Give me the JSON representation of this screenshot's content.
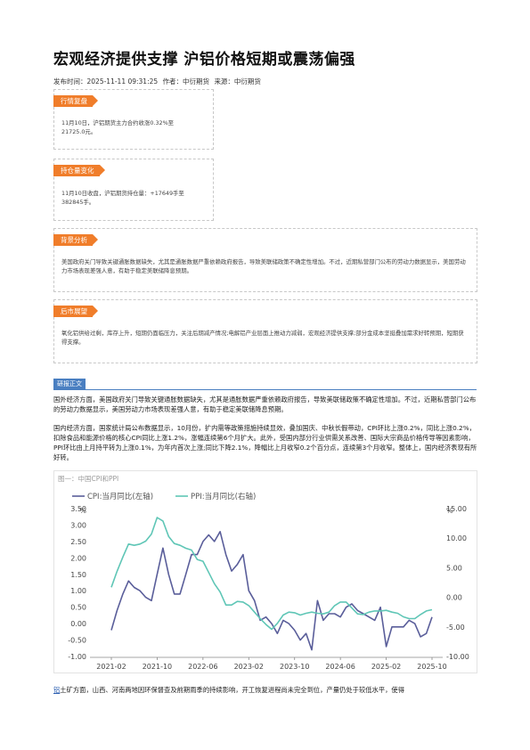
{
  "article": {
    "title": "宏观经济提供支撑 沪铝价格短期或震荡偏强",
    "meta": {
      "publish_time": "发布时间：2025-11-11 09:31:25",
      "author": "作者：中衍期货",
      "source": "来源：中衍期货"
    }
  },
  "boxes": [
    {
      "tag": "行情复盘",
      "text": "11月10日，沪铝期货主力合约收涨0.32%至21725.0元。"
    },
    {
      "tag": "持仓量变化",
      "text": "11月10日收盘，沪铝期货持仓量：+17649手至382845手。"
    },
    {
      "tag": "背景分析",
      "text": "美国政府关门导致关键通胀数据缺失，尤其是通胀数据严重依赖政府报告，导致美联储政策不确定性增加。不过，近期私营部门公布的劳动力数据显示，美国劳动力市场表现差强人意，有助于稳定美联储降息预期。"
    },
    {
      "tag": "后市展望",
      "text": "氧化铝供给过剩，库存上升，短期仍面临压力，关注后期减产情况;电解铝产业层面上推动力减弱，宏观经济提供支撑;部分金成本坚挺叠加需求好转预期，短期获得支撑。"
    }
  ],
  "section": {
    "label": "研报正文",
    "para1": "国外经济方面，美国政府关门导致关键通胀数据缺失，尤其是通胀数据严重依赖政府报告，导致美联储政策不确定性增加。不过，近期私营部门公布的劳动力数据显示，美国劳动力市场表现差强人意，有助于稳定美联储降息预期。",
    "para2": "国内经济方面，国家统计局公布数据显示，10月份，扩内需等政策措施持续显效，叠加国庆、中秋长假带动，CPI环比上涨0.2%，同比上涨0.2%，扣除食品和能源价格的核心CPI同比上涨1.2%，涨幅连续第6个月扩大。此外，受国内部分行业供需关系改善、国际大宗商品价格传导等因素影响，PPI环比由上月持平转为上涨0.1%，为年内首次上涨;同比下降2.1%，降幅比上月收窄0.2个百分点，连续第3个月收窄。整体上，国内经济表现有所好转。",
    "para3_link": "铝",
    "para3": "土矿方面，山西、河南两地因环保督查及前期雨季的持续影响，开工恢复进程尚未完全到位，产量仍处于较低水平，使得"
  },
  "chart_data": {
    "type": "line",
    "title": "图一：中国CPI和PPI",
    "left_axis_unit": "%",
    "right_axis_unit": "%",
    "x_ticks": [
      "2021-02",
      "2021-10",
      "2022-06",
      "2023-02",
      "2023-10",
      "2024-06",
      "2025-02",
      "2025-10"
    ],
    "y_left_ticks": [
      "-1.00",
      "-0.50",
      "0.00",
      "0.50",
      "1.00",
      "1.50",
      "2.00",
      "2.50",
      "3.00",
      "3.50"
    ],
    "y_right_ticks": [
      "-10.00",
      "-5.00",
      "0.00",
      "5.00",
      "10.00",
      "15.00"
    ],
    "ylim_left": [
      -1.0,
      3.5
    ],
    "ylim_right": [
      -10.0,
      15.0
    ],
    "legend_position": "top-left",
    "x": [
      "2021-02",
      "2021-03",
      "2021-04",
      "2021-05",
      "2021-06",
      "2021-07",
      "2021-08",
      "2021-09",
      "2021-10",
      "2021-11",
      "2021-12",
      "2022-01",
      "2022-02",
      "2022-03",
      "2022-04",
      "2022-05",
      "2022-06",
      "2022-07",
      "2022-08",
      "2022-09",
      "2022-10",
      "2022-11",
      "2022-12",
      "2023-01",
      "2023-02",
      "2023-03",
      "2023-04",
      "2023-05",
      "2023-06",
      "2023-07",
      "2023-08",
      "2023-09",
      "2023-10",
      "2023-11",
      "2023-12",
      "2024-01",
      "2024-02",
      "2024-03",
      "2024-04",
      "2024-05",
      "2024-06",
      "2024-07",
      "2024-08",
      "2024-09",
      "2024-10",
      "2024-11",
      "2024-12",
      "2025-01",
      "2025-02",
      "2025-03",
      "2025-04",
      "2025-05",
      "2025-06",
      "2025-07",
      "2025-08",
      "2025-09",
      "2025-10"
    ],
    "series": [
      {
        "name": "CPI:当月同比(左轴)",
        "axis": "left",
        "color": "#5a5e9a",
        "values": [
          -0.2,
          0.4,
          0.9,
          1.3,
          1.1,
          1.0,
          0.8,
          0.7,
          1.5,
          2.3,
          1.5,
          0.9,
          0.9,
          1.5,
          2.1,
          2.1,
          2.5,
          2.7,
          2.5,
          2.8,
          2.1,
          1.6,
          1.8,
          2.1,
          1.0,
          0.7,
          0.1,
          0.2,
          0.0,
          -0.3,
          0.1,
          0.0,
          -0.2,
          -0.5,
          -0.3,
          -0.8,
          0.7,
          0.1,
          0.3,
          0.3,
          0.2,
          0.5,
          0.6,
          0.4,
          0.3,
          0.2,
          0.1,
          0.5,
          -0.7,
          -0.1,
          -0.1,
          -0.1,
          0.1,
          0.0,
          -0.4,
          -0.3,
          0.2
        ]
      },
      {
        "name": "PPI:当月同比(右轴)",
        "axis": "right",
        "color": "#5fc6b6",
        "values": [
          1.7,
          4.4,
          6.8,
          9.0,
          8.8,
          9.0,
          9.5,
          10.7,
          13.5,
          12.9,
          10.3,
          9.1,
          8.8,
          8.3,
          8.0,
          6.4,
          6.1,
          4.2,
          2.3,
          0.9,
          -1.3,
          -1.3,
          -0.7,
          -0.8,
          -1.4,
          -2.5,
          -3.6,
          -4.6,
          -5.4,
          -4.4,
          -3.0,
          -2.5,
          -2.6,
          -3.0,
          -2.7,
          -2.5,
          -2.7,
          -2.8,
          -2.5,
          -1.4,
          -0.8,
          -0.8,
          -1.8,
          -2.8,
          -2.9,
          -2.5,
          -2.3,
          -2.3,
          -2.2,
          -2.5,
          -2.7,
          -3.3,
          -3.6,
          -3.6,
          -2.9,
          -2.3,
          -2.1
        ]
      }
    ]
  }
}
